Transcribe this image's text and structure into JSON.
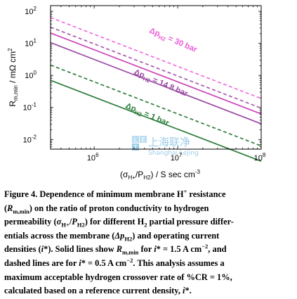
{
  "chart_data": {
    "type": "line",
    "xscale": "log",
    "yscale": "log",
    "xlim": [
      300000,
      100000000
    ],
    "ylim": [
      0.005,
      150
    ],
    "x_ticks": [
      {
        "value": 1000000,
        "base": "10",
        "exp": "6"
      },
      {
        "value": 10000000,
        "base": "10",
        "exp": "7"
      },
      {
        "value": 100000000,
        "base": "10",
        "exp": "8"
      }
    ],
    "y_ticks": [
      {
        "value": 0.01,
        "base": "10",
        "exp": "-2"
      },
      {
        "value": 0.1,
        "base": "10",
        "exp": "-1"
      },
      {
        "value": 1,
        "base": "10",
        "exp": "0"
      },
      {
        "value": 10,
        "base": "10",
        "exp": "1"
      },
      {
        "value": 100,
        "base": "10",
        "exp": "2"
      }
    ],
    "xlabel": {
      "pre": "(σ",
      "sub1": "H+",
      "mid": "/P",
      "sub2": "H2",
      "post": ") / S sec cm",
      "sup": "-3"
    },
    "ylabel": {
      "main": "R",
      "sub": "m,min",
      "unit": " / mΩ cm",
      "sup": "2"
    },
    "x": [
      300000,
      100000000
    ],
    "series": [
      {
        "group": "Δp = 30 bar",
        "current_density": "1.5 A cm-2",
        "style": "solid",
        "color": "#cc44b8",
        "y": [
          21,
          0.063
        ]
      },
      {
        "group": "Δp = 30 bar",
        "current_density": "0.5 A cm-2",
        "style": "dashed",
        "color": "#ee6ee0",
        "y": [
          64,
          0.19
        ]
      },
      {
        "group": "Δp = 14.8 bar",
        "current_density": "1.5 A cm-2",
        "style": "solid",
        "color": "#9a4aa4",
        "y": [
          10.5,
          0.031
        ]
      },
      {
        "group": "Δp = 14.8 bar",
        "current_density": "0.5 A cm-2",
        "style": "dashed",
        "color": "#a85aae",
        "y": [
          32,
          0.095
        ]
      },
      {
        "group": "Δp = 1 bar",
        "current_density": "1.5 A cm-2",
        "style": "solid",
        "color": "#2e7d3c",
        "y": [
          0.7,
          0.0021
        ]
      },
      {
        "group": "Δp = 1 bar",
        "current_density": "0.5 A cm-2",
        "style": "dashed",
        "color": "#2e7d3c",
        "y": [
          2.1,
          0.0063
        ]
      }
    ],
    "annotations": [
      {
        "pre": "Δp",
        "sub": "H2",
        "post": " = 30 bar",
        "color": "#ee5cd8"
      },
      {
        "pre": "Δp",
        "sub": "H2",
        "post": " = 14.8 bar",
        "color": "#9a4aa4"
      },
      {
        "pre": "Δp",
        "sub": "H2",
        "post": " = 1 bar",
        "color": "#2e7d3c"
      }
    ]
  },
  "watermark": {
    "logo_letters": [
      "L",
      "E",
      "T"
    ],
    "chinese": "上海联净",
    "english": "Shanghai Lejing"
  },
  "caption": {
    "lines": [
      [
        {
          "t": "Figure 4. Dependence of minimum membrane H"
        },
        {
          "t": "+",
          "sup": true
        },
        {
          "t": " resistance"
        }
      ],
      [
        {
          "t": "("
        },
        {
          "t": "R",
          "i": true
        },
        {
          "t": "m,min",
          "sub": true
        },
        {
          "t": ") on the ratio of proton conductivity to hydrogen"
        }
      ],
      [
        {
          "t": "permeability ("
        },
        {
          "t": "σ",
          "i": true
        },
        {
          "t": "H+",
          "sub": true
        },
        {
          "t": "/"
        },
        {
          "t": "P",
          "i": true
        },
        {
          "t": "H2",
          "sub": true
        },
        {
          "t": ") for different H"
        },
        {
          "t": "2",
          "sub": true
        },
        {
          "t": " partial pressure differ-"
        }
      ],
      [
        {
          "t": "entials across the membrane ("
        },
        {
          "t": "Δp",
          "i": true
        },
        {
          "t": "H2",
          "sub": true
        },
        {
          "t": ") and operating current"
        }
      ],
      [
        {
          "t": "densities ("
        },
        {
          "t": "i",
          "i": true
        },
        {
          "t": "*). Solid lines show "
        },
        {
          "t": "R",
          "i": true
        },
        {
          "t": "m,min",
          "sub": true
        },
        {
          "t": " for "
        },
        {
          "t": "i",
          "i": true
        },
        {
          "t": "* = 1.5 A cm"
        },
        {
          "t": "−2",
          "sup": true
        },
        {
          "t": ", and"
        }
      ],
      [
        {
          "t": "dashed lines are for "
        },
        {
          "t": "i",
          "i": true
        },
        {
          "t": "* = 0.5 A cm"
        },
        {
          "t": "−2",
          "sup": true
        },
        {
          "t": ". This analysis assumes a"
        }
      ],
      [
        {
          "t": "maximum acceptable hydrogen crossover rate of %CR = 1%,"
        }
      ],
      [
        {
          "t": "calculated based on a reference current density, "
        },
        {
          "t": "i",
          "i": true
        },
        {
          "t": "*."
        }
      ]
    ]
  }
}
